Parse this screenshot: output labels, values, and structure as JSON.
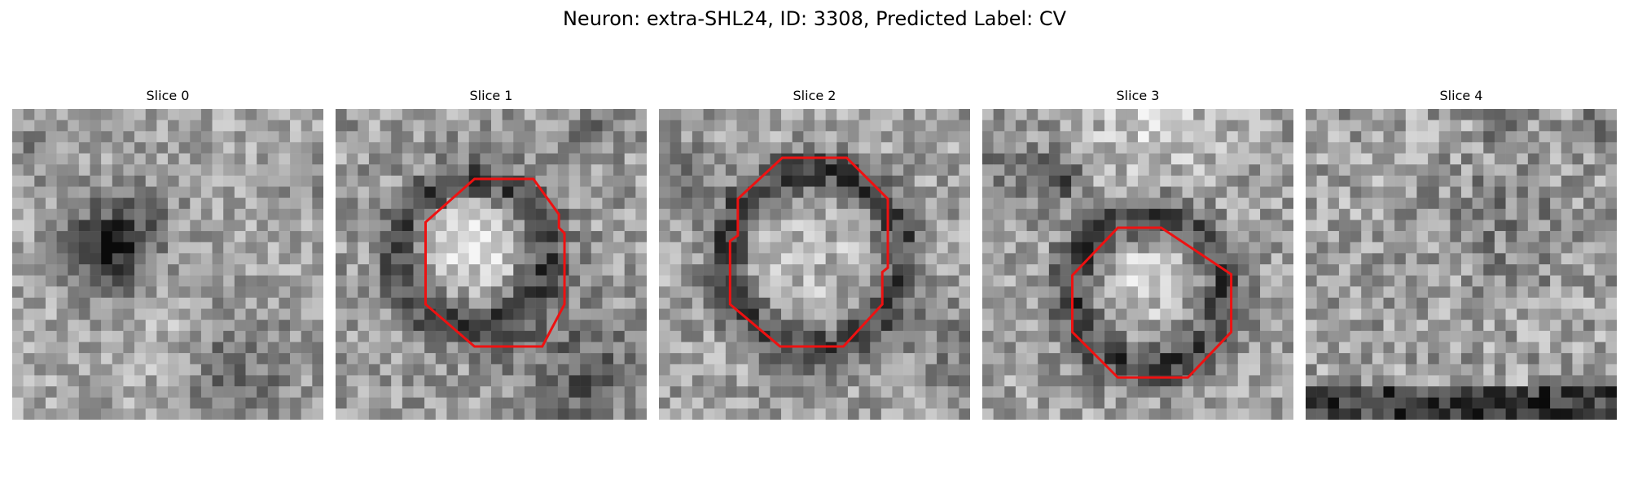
{
  "figure": {
    "title": "Neuron: extra-SHL24, ID: 3308, Predicted Label: CV"
  },
  "panels": [
    {
      "label": "Slice 0",
      "has_contour": false,
      "pattern": "dark-blob-left"
    },
    {
      "label": "Slice 1",
      "has_contour": true,
      "pattern": "bright-ring"
    },
    {
      "label": "Slice 2",
      "has_contour": true,
      "pattern": "bright-ring-large"
    },
    {
      "label": "Slice 3",
      "has_contour": true,
      "pattern": "bright-ring-lower"
    },
    {
      "label": "Slice 4",
      "has_contour": false,
      "pattern": "noise-dark-bottom"
    }
  ],
  "colors": {
    "contour": "#ee1111",
    "background": "#ffffff"
  }
}
